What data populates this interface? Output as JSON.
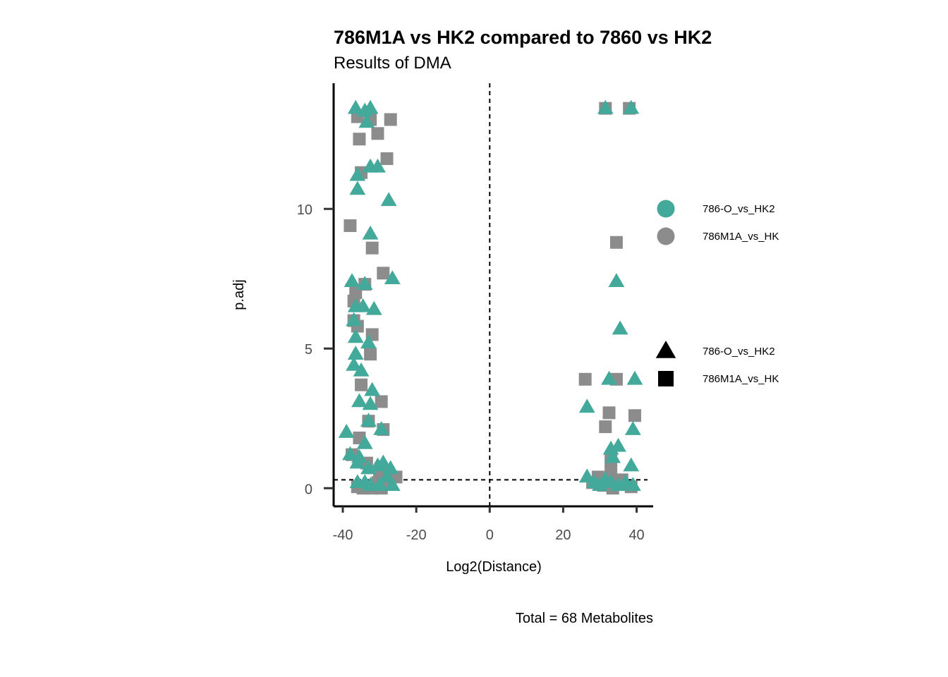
{
  "chart_data": {
    "type": "scatter",
    "title": "786M1A vs HK2 compared to 7860 vs HK2",
    "subtitle": "Results of DMA",
    "xlabel": "Log2(Distance)",
    "ylabel": "p.adj",
    "caption": "Total = 68 Metabolites",
    "xlim": [
      -42.5,
      44.5
    ],
    "ylim": [
      -0.65,
      14.5
    ],
    "x_ticks": [
      -40,
      -20,
      0,
      20,
      40
    ],
    "x_tick_labels": [
      "-40",
      "-20",
      "0",
      "20",
      "40"
    ],
    "y_ticks": [
      0,
      5,
      10
    ],
    "y_tick_labels": [
      "0",
      "5",
      "10"
    ],
    "reference_lines": {
      "vertical_x": 0,
      "horizontal_y": 0.3,
      "style": "dashed"
    },
    "grid": false,
    "colors": {
      "786-O_vs_HK2": "#43a99a",
      "786M1A_vs_HK": "#8c8c8c"
    },
    "legend": {
      "position": "right",
      "color": {
        "entries": [
          {
            "label": "786-O_vs_HK2",
            "color": "#43a99a"
          },
          {
            "label": "786M1A_vs_HK",
            "color": "#8c8c8c"
          }
        ]
      },
      "shape": {
        "entries": [
          {
            "label": "786-O_vs_HK2",
            "shape": "triangle"
          },
          {
            "label": "786M1A_vs_HK",
            "shape": "square"
          }
        ]
      }
    },
    "series": [
      {
        "name": "786-O_vs_HK2",
        "shape": "triangle",
        "color": "#43a99a",
        "points": [
          [
            -36.5,
            13.6
          ],
          [
            -34,
            13.5
          ],
          [
            -32.5,
            13.6
          ],
          [
            -33.5,
            13.1
          ],
          [
            -36,
            11.2
          ],
          [
            -32.5,
            11.5
          ],
          [
            -30.5,
            11.5
          ],
          [
            -36,
            10.7
          ],
          [
            -27.5,
            10.3
          ],
          [
            -32.5,
            9.1
          ],
          [
            -37.5,
            7.4
          ],
          [
            -34,
            7.3
          ],
          [
            -26.5,
            7.5
          ],
          [
            -36.5,
            6.5
          ],
          [
            -34.5,
            6.5
          ],
          [
            -31.5,
            6.4
          ],
          [
            -37,
            6.0
          ],
          [
            -36.5,
            5.4
          ],
          [
            -33,
            5.2
          ],
          [
            -36.5,
            4.8
          ],
          [
            -37,
            4.4
          ],
          [
            -35,
            4.2
          ],
          [
            -32,
            3.5
          ],
          [
            -35.5,
            3.1
          ],
          [
            -32.5,
            3.0
          ],
          [
            -33,
            2.4
          ],
          [
            -29.5,
            2.1
          ],
          [
            -39,
            2.0
          ],
          [
            -34,
            1.6
          ],
          [
            -38,
            1.2
          ],
          [
            -35.5,
            1.1
          ],
          [
            -36,
            0.9
          ],
          [
            -33,
            0.7
          ],
          [
            -30.5,
            0.8
          ],
          [
            -29,
            0.9
          ],
          [
            -27,
            0.7
          ],
          [
            -36,
            0.2
          ],
          [
            -34,
            0.2
          ],
          [
            -32.5,
            0.1
          ],
          [
            -30,
            0.1
          ],
          [
            -28,
            0.4
          ],
          [
            -26.5,
            0.1
          ],
          [
            31.5,
            13.6
          ],
          [
            38.5,
            13.6
          ],
          [
            34.5,
            7.4
          ],
          [
            35.5,
            5.7
          ],
          [
            32.5,
            3.9
          ],
          [
            39.5,
            3.9
          ],
          [
            26.5,
            2.9
          ],
          [
            39,
            2.1
          ],
          [
            33,
            1.4
          ],
          [
            35,
            1.5
          ],
          [
            33.5,
            1.1
          ],
          [
            38.5,
            0.8
          ],
          [
            26.5,
            0.4
          ],
          [
            28.5,
            0.2
          ],
          [
            30,
            0.1
          ],
          [
            31.5,
            0.3
          ],
          [
            33,
            0.2
          ],
          [
            35,
            0.1
          ],
          [
            37,
            0.2
          ],
          [
            39,
            0.1
          ]
        ]
      },
      {
        "name": "786M1A_vs_HK",
        "shape": "square",
        "color": "#8c8c8c",
        "points": [
          [
            -36,
            13.3
          ],
          [
            -32.5,
            13.2
          ],
          [
            -27,
            13.2
          ],
          [
            -30.5,
            12.7
          ],
          [
            -35.5,
            12.5
          ],
          [
            -28,
            11.8
          ],
          [
            -35,
            11.3
          ],
          [
            -38,
            9.4
          ],
          [
            -32,
            8.6
          ],
          [
            -29,
            7.7
          ],
          [
            -34,
            7.3
          ],
          [
            -36.5,
            7.0
          ],
          [
            -37,
            6.7
          ],
          [
            -37,
            6.0
          ],
          [
            -36,
            5.8
          ],
          [
            -32,
            5.5
          ],
          [
            -32.5,
            4.8
          ],
          [
            -35,
            3.7
          ],
          [
            -29.5,
            3.1
          ],
          [
            -33,
            2.4
          ],
          [
            -29,
            2.1
          ],
          [
            -35.5,
            1.8
          ],
          [
            -37.5,
            1.2
          ],
          [
            -33.5,
            0.9
          ],
          [
            -30,
            0.5
          ],
          [
            -25.5,
            0.4
          ],
          [
            -30.5,
            0.2
          ],
          [
            -34.5,
            0.0
          ],
          [
            -32,
            0.0
          ],
          [
            -29.5,
            0.0
          ],
          [
            -28,
            0.2
          ],
          [
            -36,
            0.05
          ],
          [
            31.5,
            13.6
          ],
          [
            38,
            13.6
          ],
          [
            34.5,
            8.8
          ],
          [
            34.5,
            3.9
          ],
          [
            26,
            3.9
          ],
          [
            32.5,
            2.7
          ],
          [
            39.5,
            2.6
          ],
          [
            31.5,
            2.2
          ],
          [
            33,
            1.0
          ],
          [
            33,
            0.6
          ],
          [
            29.5,
            0.4
          ],
          [
            28,
            0.2
          ],
          [
            31,
            0.1
          ],
          [
            33.5,
            0.0
          ],
          [
            36,
            0.3
          ],
          [
            38.5,
            0.05
          ],
          [
            35,
            0.2
          ]
        ]
      }
    ]
  }
}
